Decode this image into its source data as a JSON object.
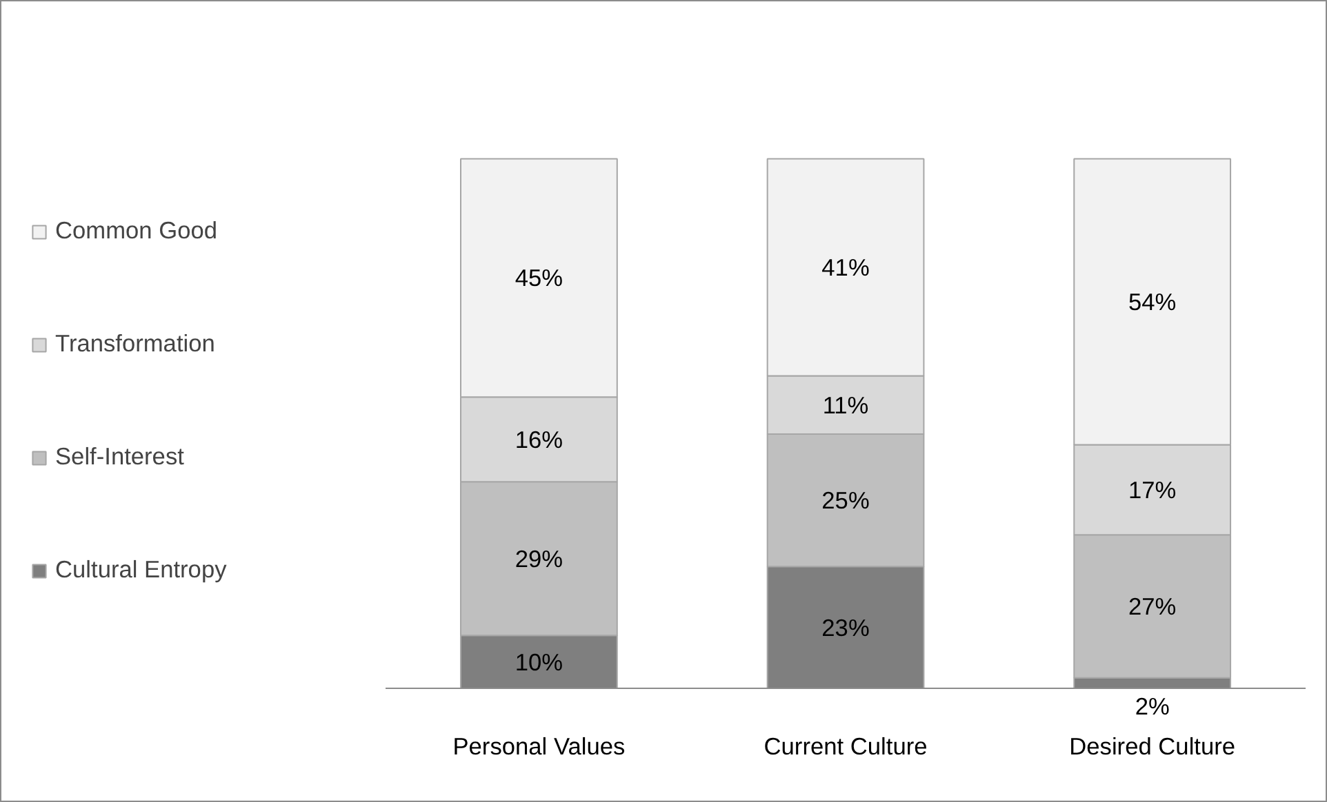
{
  "chart_data": {
    "type": "bar",
    "stacked": true,
    "categories": [
      "Personal Values",
      "Current Culture",
      "Desired Culture"
    ],
    "series": [
      {
        "name": "Cultural Entropy",
        "color": "#7f7f7f",
        "values": [
          10,
          23,
          2
        ],
        "value_labels": [
          "10%",
          "23%",
          "2%"
        ]
      },
      {
        "name": "Self-Interest",
        "color": "#bfbfbf",
        "values": [
          29,
          25,
          27
        ],
        "value_labels": [
          "29%",
          "25%",
          "27%"
        ]
      },
      {
        "name": "Transformation",
        "color": "#d9d9d9",
        "values": [
          16,
          11,
          17
        ],
        "value_labels": [
          "16%",
          "11%",
          "17%"
        ]
      },
      {
        "name": "Common Good",
        "color": "#f2f2f2",
        "values": [
          45,
          41,
          54
        ],
        "value_labels": [
          "45%",
          "41%",
          "54%"
        ]
      }
    ],
    "legend": "left",
    "grid": false
  }
}
